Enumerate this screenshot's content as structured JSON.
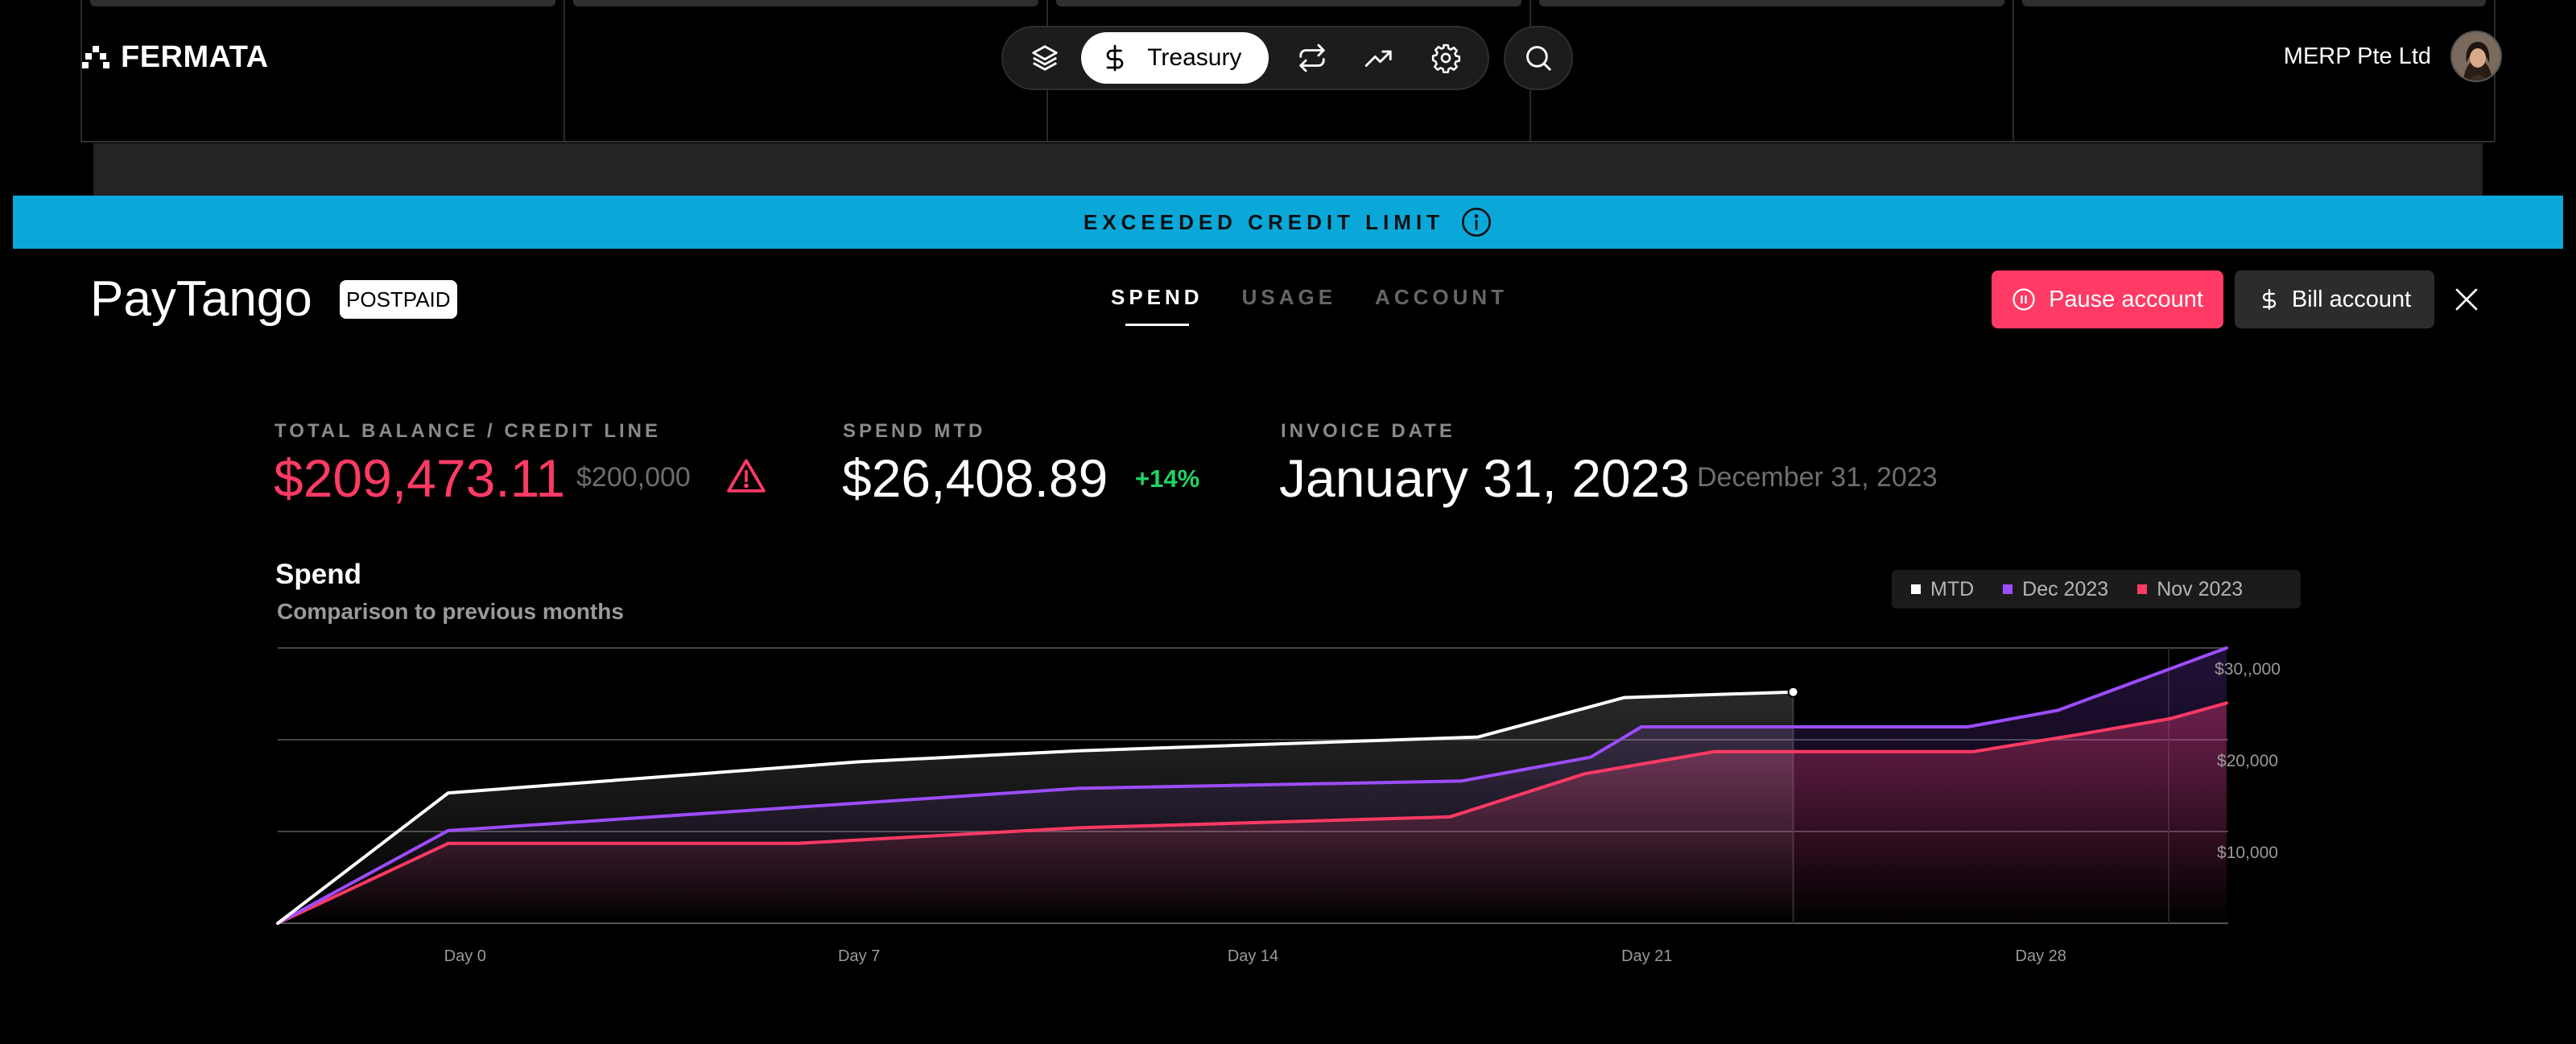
{
  "app": {
    "logo_text": "FERMATA",
    "org_name": "MERP Pte Ltd"
  },
  "nav": {
    "active_label": "Treasury",
    "icons": [
      "layers-icon",
      "dollar-icon",
      "transfer-icon",
      "trending-up-icon",
      "gear-icon",
      "search-icon"
    ]
  },
  "banner": {
    "text": "EXCEEDED CREDIT LIMIT"
  },
  "account": {
    "name": "PayTango",
    "badge": "POSTPAID"
  },
  "tabs": [
    {
      "label": "SPEND",
      "active": true
    },
    {
      "label": "USAGE",
      "active": false
    },
    {
      "label": "ACCOUNT",
      "active": false
    }
  ],
  "actions": {
    "pause_label": "Pause account",
    "bill_label": "Bill account"
  },
  "stats": {
    "balance_label": "TOTAL BALANCE / CREDIT LINE",
    "balance_value": "$209,473.11",
    "credit_line": "$200,000",
    "spend_label": "SPEND MTD",
    "spend_value": "$26,408.89",
    "spend_change": "+14%",
    "invoice_label": "INVOICE DATE",
    "invoice_value": "January 31, 2023",
    "prev_invoice": "December 31, 2023"
  },
  "colors": {
    "alert": "#ff3a64",
    "banner": "#0aa8d8",
    "mtd": "#ffffff",
    "dec": "#9c4dff",
    "nov": "#ff3a64",
    "positive": "#21d363"
  },
  "chart_data": {
    "type": "line",
    "title": "Spend",
    "subtitle": "Comparison to previous months",
    "x_ticks": [
      {
        "x": 0,
        "label": "Day 0"
      },
      {
        "x": 7,
        "label": "Day 7"
      },
      {
        "x": 14,
        "label": "Day 14"
      },
      {
        "x": 21,
        "label": "Day 21"
      },
      {
        "x": 28,
        "label": "Day 28"
      }
    ],
    "y_ticks": [
      {
        "value": 10000,
        "label": "$10,000"
      },
      {
        "value": 20000,
        "label": "$20,000"
      },
      {
        "value": 30000,
        "label": "$30,,000"
      }
    ],
    "ylim": [
      0,
      30000
    ],
    "xlim": [
      -3.33,
      31.33
    ],
    "legend_position": "top-right",
    "series": [
      {
        "name": "MTD",
        "key": "mtd",
        "points": [
          [
            -3.33,
            0
          ],
          [
            -0.3,
            14200
          ],
          [
            7,
            17600
          ],
          [
            10.9,
            18800
          ],
          [
            18,
            20300
          ],
          [
            20.6,
            24600
          ],
          [
            23.6,
            25200
          ]
        ]
      },
      {
        "name": "Dec 2023",
        "key": "dec",
        "points": [
          [
            -3.33,
            0
          ],
          [
            -0.3,
            10100
          ],
          [
            10.9,
            14700
          ],
          [
            17.7,
            15500
          ],
          [
            20,
            18100
          ],
          [
            20.9,
            21400
          ],
          [
            26.7,
            21400
          ],
          [
            28.3,
            23200
          ],
          [
            31.3,
            30000
          ]
        ]
      },
      {
        "name": "Nov 2023",
        "key": "nov",
        "points": [
          [
            -3.33,
            0
          ],
          [
            -0.3,
            8700
          ],
          [
            5.9,
            8700
          ],
          [
            10.9,
            10400
          ],
          [
            17.5,
            11600
          ],
          [
            19.9,
            16300
          ],
          [
            22.2,
            18700
          ],
          [
            26.8,
            18700
          ],
          [
            28.7,
            20600
          ],
          [
            30.3,
            22300
          ],
          [
            31.3,
            24000
          ]
        ]
      }
    ],
    "mtd_marker": "today"
  }
}
